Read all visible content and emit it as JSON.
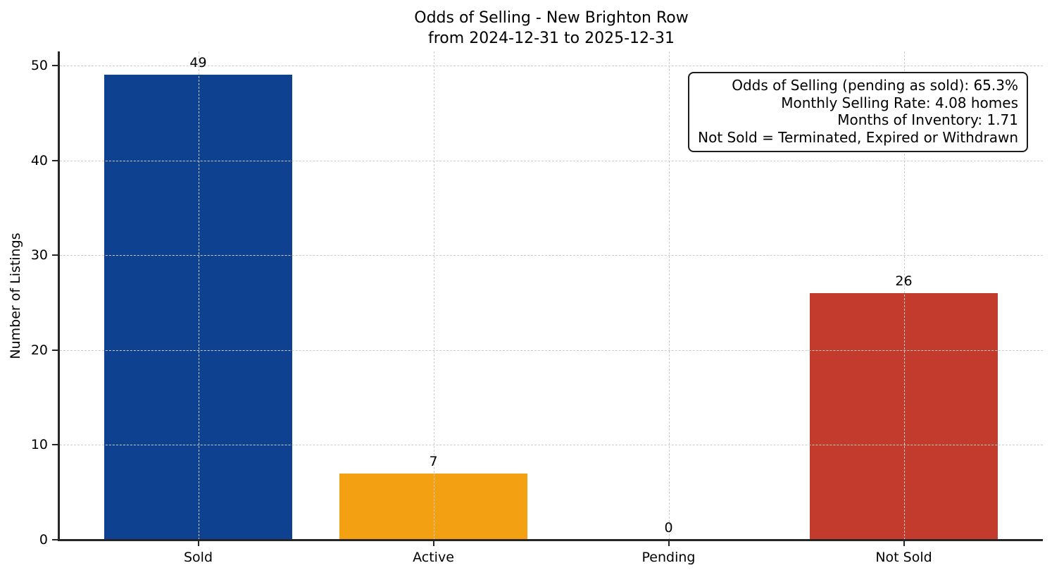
{
  "chart_data": {
    "type": "bar",
    "title_lines": [
      "Odds of Selling - New Brighton Row",
      "from 2024-12-31 to 2025-12-31"
    ],
    "ylabel": "Number of Listings",
    "xlabel": "",
    "categories": [
      "Sold",
      "Active",
      "Pending",
      "Not Sold"
    ],
    "values": [
      49,
      7,
      0,
      26
    ],
    "bar_colors": [
      "#0e418f",
      "#f3a013",
      null,
      "#c33b2c"
    ],
    "y_ticks": [
      0,
      10,
      20,
      30,
      40,
      50
    ],
    "ylim": [
      0,
      51.5
    ],
    "grid": {
      "style": "dashed",
      "axes": "both",
      "above_bars": true,
      "color": "#cccccc"
    },
    "legend": null,
    "annotation_lines": [
      "Odds of Selling (pending as sold): 65.3%",
      "Monthly Selling Rate: 4.08 homes",
      "Months of Inventory: 1.71",
      "Not Sold = Terminated, Expired or Withdrawn"
    ]
  }
}
